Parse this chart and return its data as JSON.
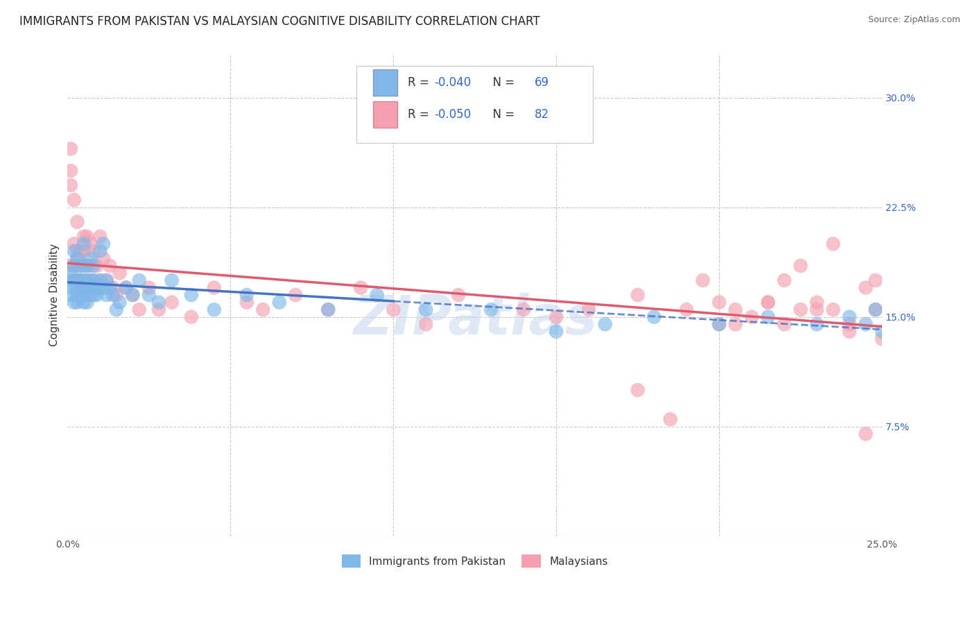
{
  "title": "IMMIGRANTS FROM PAKISTAN VS MALAYSIAN COGNITIVE DISABILITY CORRELATION CHART",
  "source": "Source: ZipAtlas.com",
  "ylabel": "Cognitive Disability",
  "legend_label1": "Immigrants from Pakistan",
  "legend_label2": "Malaysians",
  "r1": -0.04,
  "n1": 69,
  "r2": -0.05,
  "n2": 82,
  "xlim": [
    0.0,
    0.25
  ],
  "ylim": [
    0.0,
    0.33
  ],
  "x_ticks": [
    0.0,
    0.05,
    0.1,
    0.15,
    0.2,
    0.25
  ],
  "x_tick_labels": [
    "0.0%",
    "",
    "",
    "",
    "",
    "25.0%"
  ],
  "y_ticks": [
    0.0,
    0.075,
    0.15,
    0.225,
    0.3
  ],
  "y_tick_labels": [
    "",
    "7.5%",
    "15.0%",
    "22.5%",
    "30.0%"
  ],
  "color_blue": "#7eb7e8",
  "color_pink": "#f4a0b0",
  "color_line_blue": "#4472c4",
  "color_line_pink": "#e05a6e",
  "title_fontsize": 12,
  "source_fontsize": 9,
  "axis_label_fontsize": 11,
  "tick_fontsize": 10,
  "background_color": "#ffffff",
  "grid_color": "#c8c8c8",
  "legend_color": "#3366cc",
  "blue_x": [
    0.0005,
    0.001,
    0.001,
    0.001,
    0.002,
    0.002,
    0.002,
    0.002,
    0.003,
    0.003,
    0.003,
    0.003,
    0.003,
    0.004,
    0.004,
    0.004,
    0.004,
    0.005,
    0.005,
    0.005,
    0.005,
    0.005,
    0.006,
    0.006,
    0.006,
    0.006,
    0.007,
    0.007,
    0.007,
    0.008,
    0.008,
    0.008,
    0.008,
    0.009,
    0.009,
    0.01,
    0.01,
    0.011,
    0.011,
    0.012,
    0.012,
    0.013,
    0.014,
    0.015,
    0.016,
    0.018,
    0.02,
    0.022,
    0.025,
    0.028,
    0.032,
    0.038,
    0.045,
    0.055,
    0.065,
    0.08,
    0.095,
    0.11,
    0.13,
    0.15,
    0.165,
    0.18,
    0.2,
    0.215,
    0.23,
    0.24,
    0.245,
    0.248,
    0.25
  ],
  "blue_y": [
    0.175,
    0.18,
    0.165,
    0.17,
    0.175,
    0.16,
    0.185,
    0.195,
    0.165,
    0.17,
    0.175,
    0.16,
    0.19,
    0.165,
    0.17,
    0.185,
    0.175,
    0.16,
    0.165,
    0.175,
    0.185,
    0.2,
    0.17,
    0.175,
    0.16,
    0.185,
    0.165,
    0.175,
    0.19,
    0.17,
    0.175,
    0.165,
    0.185,
    0.17,
    0.165,
    0.195,
    0.175,
    0.2,
    0.17,
    0.175,
    0.165,
    0.17,
    0.165,
    0.155,
    0.16,
    0.17,
    0.165,
    0.175,
    0.165,
    0.16,
    0.175,
    0.165,
    0.155,
    0.165,
    0.16,
    0.155,
    0.165,
    0.155,
    0.155,
    0.14,
    0.145,
    0.15,
    0.145,
    0.15,
    0.145,
    0.15,
    0.145,
    0.155,
    0.14
  ],
  "pink_x": [
    0.0005,
    0.001,
    0.001,
    0.001,
    0.002,
    0.002,
    0.002,
    0.002,
    0.003,
    0.003,
    0.003,
    0.003,
    0.004,
    0.004,
    0.004,
    0.005,
    0.005,
    0.005,
    0.006,
    0.006,
    0.006,
    0.007,
    0.007,
    0.007,
    0.008,
    0.008,
    0.009,
    0.009,
    0.01,
    0.01,
    0.011,
    0.012,
    0.013,
    0.014,
    0.015,
    0.016,
    0.018,
    0.02,
    0.022,
    0.025,
    0.028,
    0.032,
    0.038,
    0.045,
    0.055,
    0.06,
    0.07,
    0.08,
    0.09,
    0.1,
    0.11,
    0.12,
    0.14,
    0.15,
    0.16,
    0.175,
    0.19,
    0.2,
    0.205,
    0.215,
    0.22,
    0.225,
    0.23,
    0.235,
    0.24,
    0.245,
    0.248,
    0.25,
    0.248,
    0.245,
    0.24,
    0.235,
    0.23,
    0.225,
    0.22,
    0.215,
    0.21,
    0.205,
    0.2,
    0.195,
    0.185,
    0.175
  ],
  "pink_y": [
    0.185,
    0.265,
    0.25,
    0.24,
    0.23,
    0.2,
    0.185,
    0.175,
    0.195,
    0.215,
    0.175,
    0.19,
    0.195,
    0.185,
    0.175,
    0.205,
    0.175,
    0.195,
    0.185,
    0.17,
    0.205,
    0.2,
    0.185,
    0.17,
    0.195,
    0.175,
    0.185,
    0.17,
    0.205,
    0.175,
    0.19,
    0.175,
    0.185,
    0.17,
    0.165,
    0.18,
    0.17,
    0.165,
    0.155,
    0.17,
    0.155,
    0.16,
    0.15,
    0.17,
    0.16,
    0.155,
    0.165,
    0.155,
    0.17,
    0.155,
    0.145,
    0.165,
    0.155,
    0.15,
    0.155,
    0.165,
    0.155,
    0.16,
    0.145,
    0.16,
    0.175,
    0.155,
    0.16,
    0.155,
    0.145,
    0.17,
    0.155,
    0.135,
    0.175,
    0.07,
    0.14,
    0.2,
    0.155,
    0.185,
    0.145,
    0.16,
    0.15,
    0.155,
    0.145,
    0.175,
    0.08,
    0.1
  ],
  "blue_line_solid_end": 0.1,
  "blue_line_x0": 0.0,
  "blue_line_x1": 0.25,
  "pink_line_x0": 0.0,
  "pink_line_x1": 0.25,
  "blue_line_y0": 0.17,
  "blue_line_y1": 0.163,
  "pink_line_y0": 0.18,
  "pink_line_y1": 0.172
}
